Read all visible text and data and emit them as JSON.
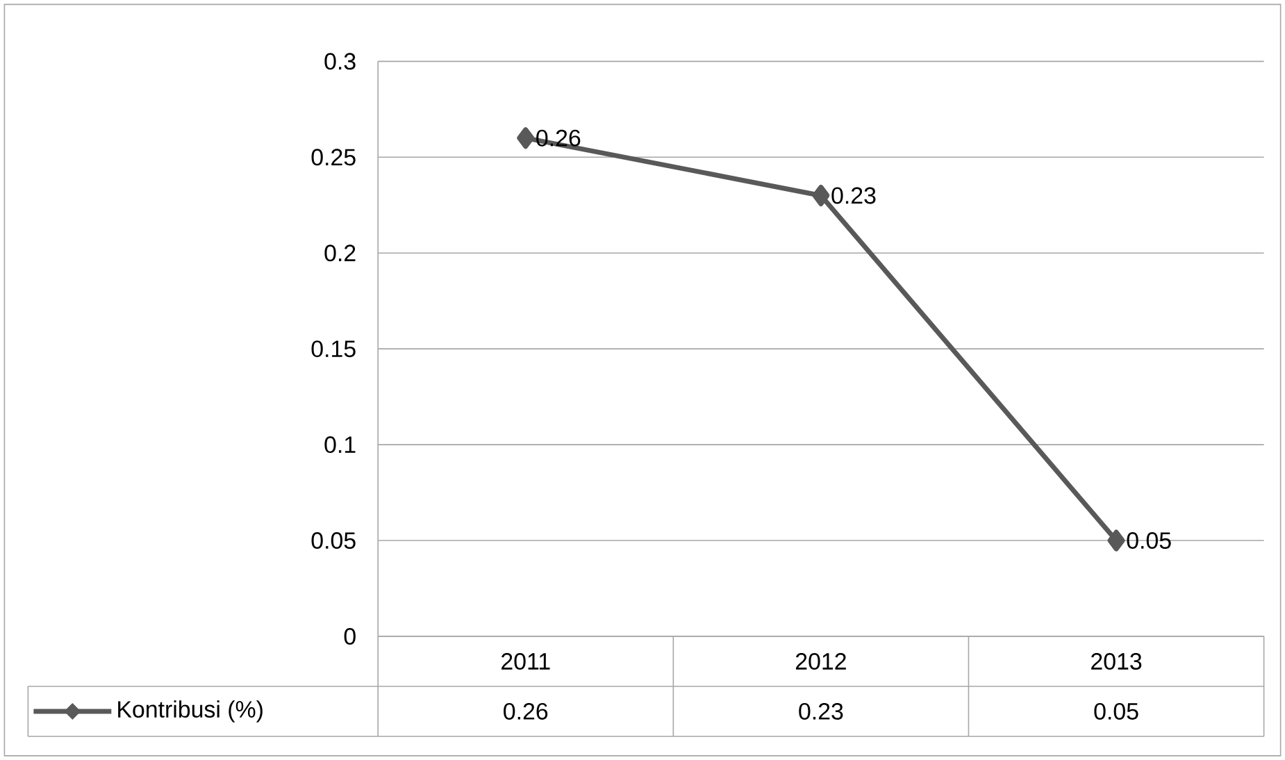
{
  "chart_data": {
    "type": "line",
    "categories": [
      "2011",
      "2012",
      "2013"
    ],
    "series": [
      {
        "name": "Kontribusi (%)",
        "color": "#595959",
        "values": [
          0.26,
          0.23,
          0.05
        ],
        "value_labels": [
          "0.26",
          "0.23",
          "0.05"
        ]
      }
    ],
    "ylim": [
      0,
      0.3
    ],
    "yticks": [
      0,
      0.05,
      0.1,
      0.15,
      0.2,
      0.25,
      0.3
    ],
    "grid": "y",
    "legend": "bottom",
    "marker": "diamond"
  }
}
